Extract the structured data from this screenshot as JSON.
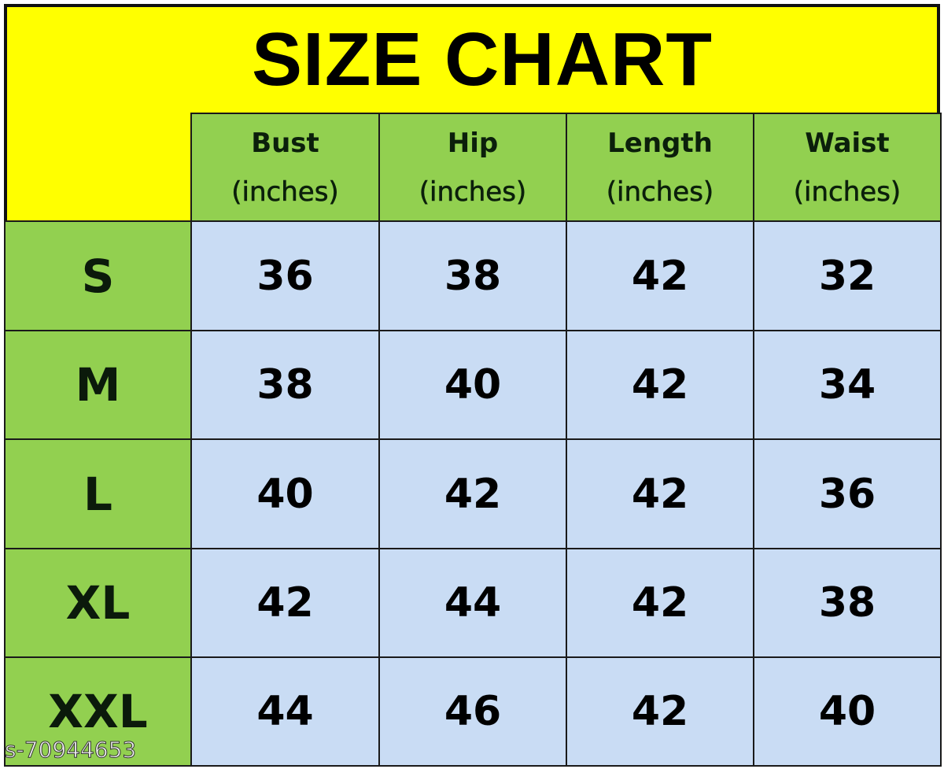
{
  "title": "SIZE CHART",
  "colors": {
    "title_background": "#ffff00",
    "header_background": "#92d050",
    "value_background": "#c9dcf4"
  },
  "columns": [
    {
      "name": "Bust",
      "unit": "(inches)"
    },
    {
      "name": "Hip",
      "unit": "(inches)"
    },
    {
      "name": "Length",
      "unit": "(inches)"
    },
    {
      "name": "Waist",
      "unit": "(inches)"
    }
  ],
  "rows": [
    {
      "size": "S",
      "values": [
        "36",
        "38",
        "42",
        "32"
      ]
    },
    {
      "size": "M",
      "values": [
        "38",
        "40",
        "42",
        "34"
      ]
    },
    {
      "size": "L",
      "values": [
        "40",
        "42",
        "42",
        "36"
      ]
    },
    {
      "size": "XL",
      "values": [
        "42",
        "44",
        "42",
        "38"
      ]
    },
    {
      "size": "XXL",
      "values": [
        "44",
        "46",
        "42",
        "40"
      ]
    }
  ],
  "watermark": "s-70944653"
}
